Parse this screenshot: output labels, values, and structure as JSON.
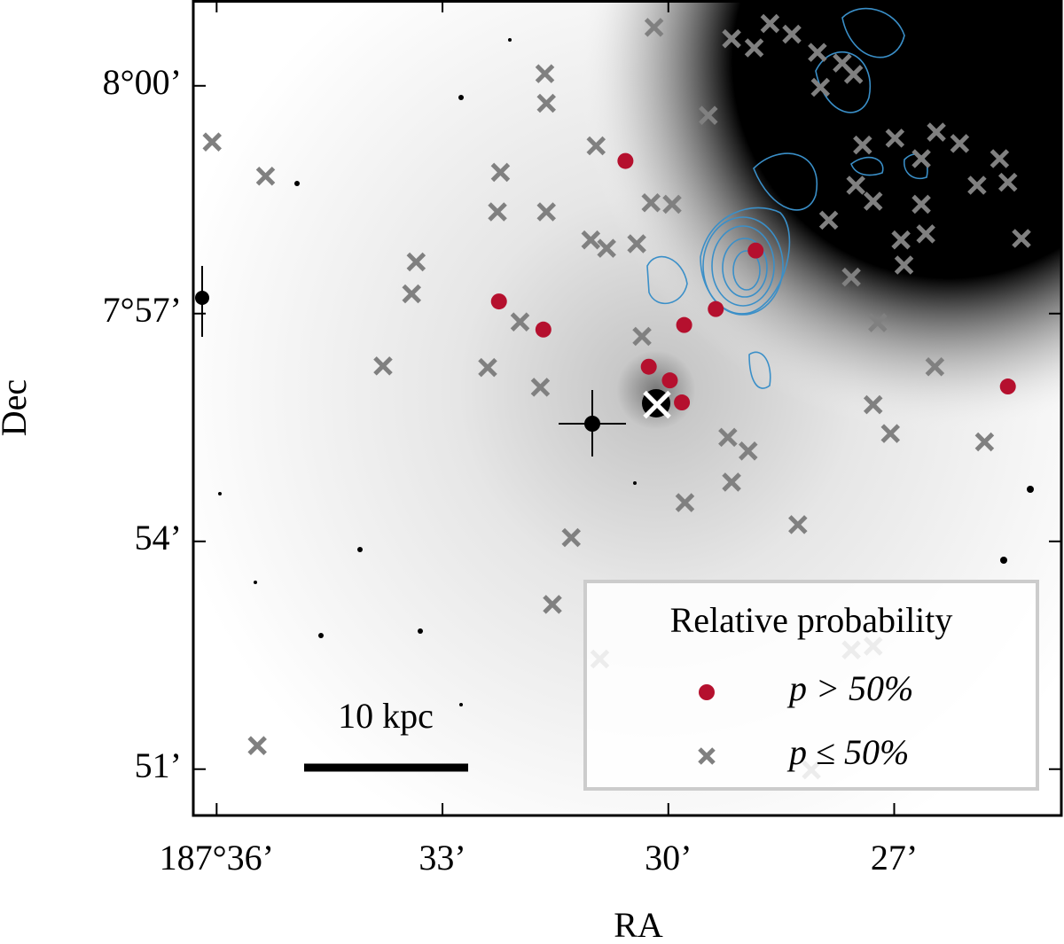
{
  "chart_data": {
    "type": "scatter",
    "xlabel": "RA",
    "ylabel": "Dec",
    "xlim": [
      36.31,
      24.78
    ],
    "ylim": [
      50.39,
      61.13
    ],
    "xticks": [
      {
        "value": 36,
        "label": "187°36’"
      },
      {
        "value": 33,
        "label": "33’"
      },
      {
        "value": 30,
        "label": "30’"
      },
      {
        "value": 27,
        "label": "27’"
      }
    ],
    "yticks": [
      {
        "value": 60,
        "label": "8°00’"
      },
      {
        "value": 57,
        "label": "7°57’"
      },
      {
        "value": 54,
        "label": "54’"
      },
      {
        "value": 51,
        "label": "51’"
      }
    ],
    "legend": "lower right",
    "legend_title": "Relative probability",
    "annotations": [
      "10 kpc"
    ],
    "series": [
      {
        "name": "p > 50%",
        "color": "#b5102e",
        "marker": "o",
        "x": [
          30.57,
          32.25,
          31.66,
          29.79,
          29.37,
          28.84,
          30.26,
          29.98,
          29.82,
          25.49
        ],
        "values": [
          59.01,
          57.16,
          56.79,
          56.85,
          57.06,
          57.83,
          56.3,
          56.12,
          55.83,
          56.04
        ]
      },
      {
        "name": "p ≤ 50%",
        "color": "#808080",
        "marker": "x",
        "x": [
          36.06,
          35.35,
          33.35,
          33.41,
          33.79,
          32.4,
          31.97,
          31.7,
          32.27,
          32.23,
          31.62,
          31.62,
          31.64,
          30.96,
          31.03,
          30.82,
          30.42,
          30.23,
          29.95,
          30.35,
          30.19,
          29.47,
          29.16,
          28.86,
          28.65,
          28.36,
          28.02,
          27.69,
          27.54,
          27.98,
          26.99,
          27.42,
          26.64,
          26.44,
          26.13,
          25.6,
          25.49,
          25.9,
          27.51,
          27.28,
          27.87,
          26.64,
          26.91,
          26.58,
          25.31,
          26.87,
          27.57,
          27.22,
          26.46,
          27.28,
          27.05,
          25.8,
          29.21,
          28.94,
          29.16,
          29.78,
          28.28,
          31.29,
          31.54,
          35.46,
          30.91,
          27.57,
          27.28,
          28.1
        ],
        "values": [
          59.26,
          58.81,
          57.68,
          57.26,
          56.31,
          56.29,
          56.89,
          56.03,
          58.34,
          58.86,
          58.34,
          59.77,
          60.16,
          59.21,
          57.97,
          57.86,
          57.92,
          58.46,
          58.44,
          56.7,
          60.77,
          59.61,
          60.62,
          60.5,
          60.82,
          60.68,
          60.44,
          60.3,
          60.15,
          59.98,
          59.31,
          59.22,
          59.04,
          59.39,
          59.24,
          59.04,
          58.73,
          58.69,
          58.69,
          58.48,
          58.23,
          58.44,
          57.97,
          58.05,
          57.99,
          57.64,
          57.48,
          56.88,
          56.3,
          55.8,
          55.42,
          55.31,
          55.37,
          55.19,
          54.78,
          54.51,
          54.22,
          54.05,
          53.17,
          51.31,
          52.45,
          52.57,
          52.62,
          50.99
        ]
      },
      {
        "color": "#ffffff",
        "marker": "x",
        "x": [
          30.15
        ],
        "values": [
          55.8
        ]
      }
    ]
  }
}
